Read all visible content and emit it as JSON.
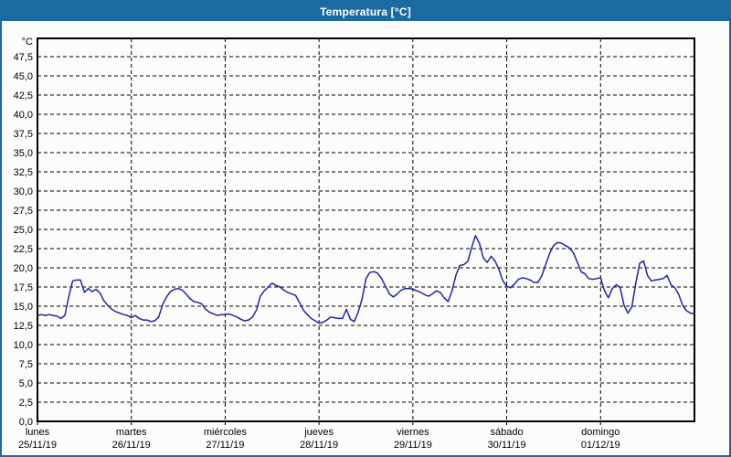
{
  "window": {
    "title": "Temperatura [°C]",
    "titlebar_color": "#1c6ba0",
    "background_color": "#fcfdfa"
  },
  "chart_data": {
    "type": "line",
    "title": "Temperatura [°C]",
    "grid": "dashed",
    "legend": "none",
    "y_axis": {
      "unit_label": "°C",
      "min": 0,
      "max": 47.5,
      "tick_step": 2.5,
      "tick_labels": [
        "0,0",
        "2,5",
        "5,0",
        "7,5",
        "10,0",
        "12,5",
        "15,0",
        "17,5",
        "20,0",
        "22,5",
        "25,0",
        "27,5",
        "30,0",
        "32,5",
        "35,0",
        "37,5",
        "40,0",
        "42,5",
        "45,0",
        "47,5"
      ]
    },
    "x_axis": {
      "total_hours": 168,
      "days": [
        {
          "name": "lunes",
          "date": "25/11/19"
        },
        {
          "name": "martes",
          "date": "26/11/19"
        },
        {
          "name": "miércoles",
          "date": "27/11/19"
        },
        {
          "name": "jueves",
          "date": "28/11/19"
        },
        {
          "name": "viernes",
          "date": "29/11/19"
        },
        {
          "name": "sábado",
          "date": "30/11/19"
        },
        {
          "name": "domingo",
          "date": "01/12/19"
        }
      ]
    },
    "series": [
      {
        "name": "Temperatura",
        "color": "#2323ac",
        "x_start_hour": 0,
        "x_step_hours": 1,
        "values": [
          13.8,
          13.9,
          13.8,
          13.9,
          13.8,
          13.7,
          13.4,
          13.8,
          16.2,
          18.3,
          18.4,
          18.4,
          16.8,
          17.3,
          16.9,
          17.2,
          16.7,
          15.7,
          15.1,
          14.6,
          14.3,
          14.1,
          13.9,
          13.8,
          13.5,
          13.8,
          13.4,
          13.2,
          13.2,
          13.0,
          13.1,
          13.6,
          15.2,
          16.2,
          16.9,
          17.2,
          17.3,
          17.1,
          16.6,
          16.0,
          15.6,
          15.5,
          15.3,
          14.6,
          14.2,
          14.0,
          13.8,
          13.9,
          13.9,
          14.0,
          13.8,
          13.6,
          13.3,
          13.1,
          13.2,
          13.6,
          14.5,
          16.3,
          17.0,
          17.5,
          18.0,
          17.7,
          17.5,
          17.1,
          16.8,
          16.6,
          16.4,
          15.5,
          14.5,
          13.9,
          13.4,
          13.1,
          12.8,
          12.9,
          13.2,
          13.6,
          13.5,
          13.4,
          13.4,
          14.6,
          13.3,
          13.0,
          14.2,
          15.9,
          18.6,
          19.4,
          19.5,
          19.3,
          18.6,
          17.6,
          16.6,
          16.2,
          16.6,
          17.1,
          17.3,
          17.3,
          17.2,
          17.0,
          16.8,
          16.5,
          16.3,
          16.6,
          17.0,
          16.8,
          16.1,
          15.6,
          17.0,
          19.0,
          20.3,
          20.4,
          20.8,
          22.6,
          24.2,
          23.2,
          21.3,
          20.7,
          21.5,
          20.9,
          19.8,
          18.3,
          17.6,
          17.4,
          17.9,
          18.5,
          18.7,
          18.6,
          18.4,
          18.1,
          18.1,
          19.0,
          20.5,
          21.9,
          22.9,
          23.3,
          23.2,
          22.9,
          22.6,
          22.0,
          20.8,
          19.5,
          19.2,
          18.6,
          18.5,
          18.6,
          18.7,
          17.0,
          16.1,
          17.3,
          17.8,
          17.4,
          15.1,
          14.1,
          14.9,
          18.0,
          20.6,
          20.9,
          19.0,
          18.3,
          18.4,
          18.5,
          18.6,
          19.0,
          17.8,
          17.4,
          16.5,
          15.1,
          14.4,
          14.1,
          14.0
        ]
      }
    ]
  }
}
